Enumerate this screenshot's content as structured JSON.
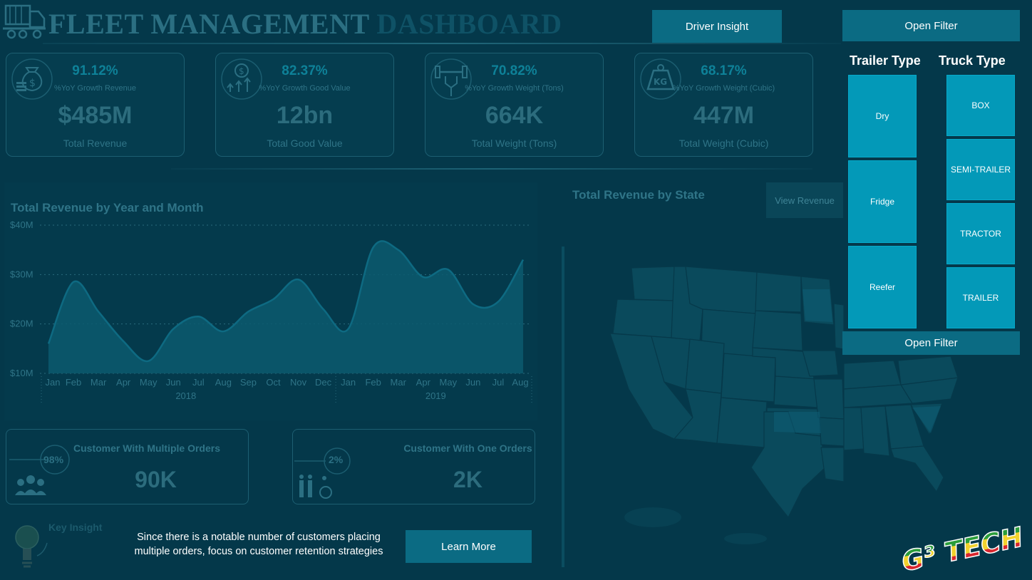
{
  "header": {
    "title_main": "FLEET MANAGEMENT",
    "title_dim": "DASHBOARD",
    "driver_insight_label": "Driver Insight",
    "open_filter_label": "Open Filter"
  },
  "kpis": [
    {
      "icon": "money-bag-icon",
      "pct": "91.12%",
      "sub": "%YoY Growth Revenue",
      "value": "$485M",
      "label": "Total Revenue"
    },
    {
      "icon": "coin-growth-icon",
      "pct": "82.37%",
      "sub": "%YoY Growth Good Value",
      "value": "12bn",
      "label": "Total Good Value"
    },
    {
      "icon": "weightlifting-icon",
      "pct": "70.82%",
      "sub": "%YoY Growth Weight (Tons)",
      "value": "664K",
      "label": "Total Weight (Tons)"
    },
    {
      "icon": "kg-weight-icon",
      "pct": "68.17%",
      "sub": "%YoY Growth Weight (Cubic)",
      "value": "447M",
      "label": "Total Weight (Cubic)"
    }
  ],
  "chart_data": {
    "type": "area",
    "title": "Total Revenue by Year and Month",
    "x": [
      "Jan",
      "Feb",
      "Mar",
      "Apr",
      "May",
      "Jun",
      "Jul",
      "Aug",
      "Sep",
      "Oct",
      "Nov",
      "Dec",
      "Jan",
      "Feb",
      "Mar",
      "Apr",
      "May",
      "Jun",
      "Jul",
      "Aug"
    ],
    "years": [
      {
        "label": "2018"
      },
      {
        "label": "2019"
      }
    ],
    "values": [
      16,
      28.5,
      22.5,
      16.5,
      12.5,
      19,
      21.5,
      18.5,
      22.5,
      25,
      29,
      23,
      19,
      35.5,
      35,
      29.5,
      31,
      24,
      24.5,
      33
    ],
    "ylim": [
      10,
      40
    ],
    "yticks": [
      "$40M",
      "$30M",
      "$20M",
      "$10M"
    ],
    "ytick_values": [
      40,
      30,
      20,
      10
    ],
    "grid": true,
    "color": "#0c5b6f"
  },
  "map": {
    "title": "Total Revenue by State",
    "view_revenue_label": "View Revenue"
  },
  "filters": {
    "trailer_title": "Trailer Type",
    "truck_title": "Truck Type",
    "trailer_types": [
      "Dry",
      "Fridge",
      "Reefer"
    ],
    "truck_types": [
      "BOX",
      "SEMI-TRAILER",
      "TRACTOR",
      "TRAILER"
    ]
  },
  "customers": [
    {
      "icon": "people-group-icon",
      "badge": "98%",
      "title": "Customer With Multiple Orders",
      "value": "90K"
    },
    {
      "icon": "family-accessibility-icon",
      "badge": "2%",
      "title": "Customer With One Orders",
      "value": "2K"
    }
  ],
  "insight": {
    "label": "Key Insight",
    "text": "Since there is a notable number of customers placing multiple orders, focus on customer retention strategies",
    "learn_more_label": "Learn More"
  },
  "brand": {
    "text": "G³ TECH"
  },
  "colors": {
    "background": "#04384a",
    "button": "#0b6b83",
    "tile": "#0399b8"
  }
}
